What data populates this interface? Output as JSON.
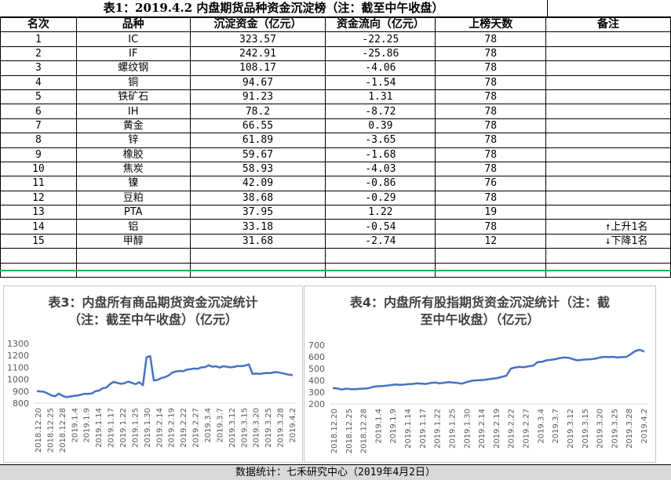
{
  "table": {
    "title": "表1：2019.4.2 内盘期货品种资金沉淀榜（注：截至中午收盘）",
    "headers": [
      "名次",
      "品种",
      "沉淀资金（亿元）",
      "资金流向（亿元）",
      "上榜天数",
      "备注"
    ],
    "rows": [
      [
        "1",
        "IC",
        "323.57",
        "-22.25",
        "78",
        ""
      ],
      [
        "2",
        "IF",
        "242.91",
        "-25.86",
        "78",
        ""
      ],
      [
        "3",
        "螺纹钢",
        "108.17",
        "-4.06",
        "78",
        ""
      ],
      [
        "4",
        "铜",
        "94.67",
        "-1.54",
        "78",
        ""
      ],
      [
        "5",
        "铁矿石",
        "91.23",
        "1.31",
        "78",
        ""
      ],
      [
        "6",
        "IH",
        "78.2",
        "-8.72",
        "78",
        ""
      ],
      [
        "7",
        "黄金",
        "66.55",
        "0.39",
        "78",
        ""
      ],
      [
        "8",
        "锌",
        "61.89",
        "-3.65",
        "78",
        ""
      ],
      [
        "9",
        "橡胶",
        "59.67",
        "-1.68",
        "78",
        ""
      ],
      [
        "10",
        "焦炭",
        "58.93",
        "-4.03",
        "78",
        ""
      ],
      [
        "11",
        "镍",
        "42.09",
        "-0.86",
        "76",
        ""
      ],
      [
        "12",
        "豆粕",
        "38.68",
        "-0.29",
        "78",
        ""
      ],
      [
        "13",
        "PTA",
        "37.95",
        "1.22",
        "19",
        ""
      ],
      [
        "14",
        "铝",
        "33.18",
        "-0.54",
        "78",
        "↑上升1名"
      ],
      [
        "15",
        "甲醇",
        "31.68",
        "-2.74",
        "12",
        "↓下降1名"
      ]
    ]
  },
  "chart_data": [
    {
      "type": "line",
      "title": "表3：内盘所有商品期货资金沉淀统计（注：截至中午收盘）（亿元）",
      "xlabel": "",
      "ylabel": "",
      "ylim": [
        800,
        1300
      ],
      "yticks": [
        800,
        900,
        1000,
        1100,
        1200,
        1300
      ],
      "grid": false,
      "x_tick_labels": [
        "2018.12.20",
        "2018.12.25",
        "2018.12.28",
        "2019.1.4",
        "2019.1.9",
        "2019.1.14",
        "2019.1.17",
        "2019.1.22",
        "2019.1.25",
        "2019.1.30",
        "2019.2.14",
        "2019.2.19",
        "2019.2.22",
        "2019.2.27",
        "2019.3.4",
        "2019.3.7",
        "2019.3.12",
        "2019.3.15",
        "2019.3.20",
        "2019.3.25",
        "2019.3.28",
        "2019.4.2"
      ],
      "values": [
        900,
        898,
        895,
        880,
        865,
        858,
        880,
        862,
        850,
        855,
        860,
        863,
        870,
        878,
        878,
        880,
        900,
        905,
        925,
        930,
        960,
        978,
        970,
        962,
        968,
        980,
        970,
        960,
        975,
        950,
        1185,
        1195,
        990,
        995,
        1010,
        1018,
        1032,
        1055,
        1065,
        1070,
        1068,
        1080,
        1085,
        1090,
        1088,
        1100,
        1102,
        1118,
        1105,
        1110,
        1098,
        1110,
        1105,
        1100,
        1104,
        1112,
        1110,
        1115,
        1125,
        1045,
        1048,
        1046,
        1050,
        1053,
        1052,
        1060,
        1058,
        1052,
        1045,
        1038,
        1035
      ]
    },
    {
      "type": "line",
      "title": "表4：内盘所有股指期货资金沉淀统计（注：截至中午收盘）（亿元）",
      "xlabel": "",
      "ylabel": "",
      "ylim": [
        200,
        700
      ],
      "yticks": [
        200,
        300,
        400,
        500,
        600,
        700
      ],
      "grid": false,
      "x_tick_labels": [
        "2018.12.20",
        "2018.12.25",
        "2018.12.28",
        "2019.1.4",
        "2019.1.9",
        "2019.1.14",
        "2019.1.17",
        "2019.1.22",
        "2019.1.25",
        "2019.1.30",
        "2019.2.14",
        "2019.2.19",
        "2019.2.22",
        "2019.2.27",
        "2019.3.4",
        "2019.3.7",
        "2019.3.12",
        "2019.3.15",
        "2019.3.20",
        "2019.3.25",
        "2019.3.28",
        "2019.4.2"
      ],
      "values": [
        335,
        332,
        322,
        330,
        326,
        325,
        328,
        330,
        333,
        345,
        350,
        352,
        355,
        360,
        365,
        362,
        364,
        368,
        370,
        375,
        372,
        370,
        378,
        382,
        375,
        380,
        385,
        382,
        378,
        372,
        385,
        395,
        400,
        402,
        404,
        410,
        415,
        420,
        430,
        440,
        500,
        510,
        515,
        512,
        520,
        525,
        555,
        558,
        570,
        575,
        580,
        590,
        595,
        592,
        580,
        570,
        575,
        578,
        580,
        585,
        595,
        600,
        598,
        600,
        595,
        598,
        600,
        625,
        650,
        660,
        645
      ]
    }
  ],
  "footer": "数据统计：七禾研究中心（2019年4月2日）"
}
